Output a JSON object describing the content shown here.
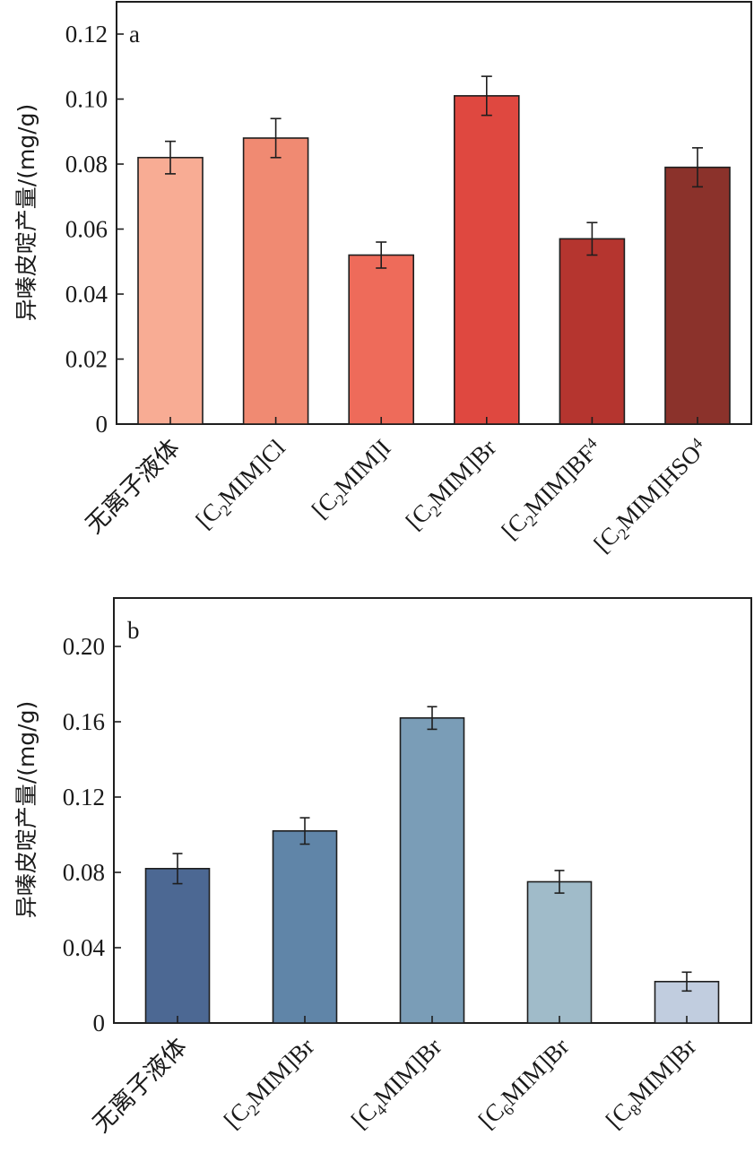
{
  "chart_data": [
    {
      "type": "bar",
      "panel": "a",
      "title": "",
      "xlabel": "",
      "ylabel": "异嗪皮啶产量/(mg/g)",
      "ylim": [
        0,
        0.13
      ],
      "yticks": [
        0,
        0.02,
        0.04,
        0.06,
        0.08,
        0.1,
        0.12
      ],
      "ytick_labels": [
        "0",
        "0.02",
        "0.04",
        "0.06",
        "0.08",
        "0.10",
        "0.12"
      ],
      "categories": [
        {
          "base": "无离子液体",
          "sub": "",
          "rest": "",
          "sub2": ""
        },
        {
          "base": "[C",
          "sub": "2",
          "rest": "MIM]Cl",
          "sub2": ""
        },
        {
          "base": "[C",
          "sub": "2",
          "rest": "MIM]I",
          "sub2": ""
        },
        {
          "base": "[C",
          "sub": "2",
          "rest": "MIM]Br",
          "sub2": ""
        },
        {
          "base": "[C",
          "sub": "2",
          "rest": "MIM]BF",
          "sub2": "4"
        },
        {
          "base": "[C",
          "sub": "2",
          "rest": "MIM]HSO",
          "sub2": "4"
        }
      ],
      "values": [
        0.082,
        0.088,
        0.052,
        0.101,
        0.057,
        0.079
      ],
      "errors": [
        0.005,
        0.006,
        0.004,
        0.006,
        0.005,
        0.006
      ],
      "colors": [
        "#F8AC94",
        "#F08A72",
        "#EE6B5A",
        "#DF4840",
        "#B5352F",
        "#8B322B"
      ],
      "grid": false,
      "legend": "none"
    },
    {
      "type": "bar",
      "panel": "b",
      "title": "",
      "xlabel": "",
      "ylabel": "异嗪皮啶产量/(mg/g)",
      "ylim": [
        0,
        0.225
      ],
      "yticks": [
        0,
        0.04,
        0.08,
        0.12,
        0.16,
        0.2
      ],
      "ytick_labels": [
        "0",
        "0.04",
        "0.08",
        "0.12",
        "0.16",
        "0.20"
      ],
      "categories": [
        {
          "base": "无离子液体",
          "sub": "",
          "rest": "",
          "sub2": ""
        },
        {
          "base": "[C",
          "sub": "2",
          "rest": "MIM]Br",
          "sub2": ""
        },
        {
          "base": "[C",
          "sub": "4",
          "rest": "MIM]Br",
          "sub2": ""
        },
        {
          "base": "[C",
          "sub": "6",
          "rest": "MIM]Br",
          "sub2": ""
        },
        {
          "base": "[C",
          "sub": "8",
          "rest": "MIM]Br",
          "sub2": ""
        }
      ],
      "values": [
        0.082,
        0.102,
        0.162,
        0.075,
        0.022
      ],
      "errors": [
        0.008,
        0.007,
        0.006,
        0.006,
        0.005
      ],
      "colors": [
        "#4C6893",
        "#6085A8",
        "#7A9DB7",
        "#A0BBC9",
        "#C1CDDF"
      ],
      "grid": false,
      "legend": "none"
    }
  ]
}
